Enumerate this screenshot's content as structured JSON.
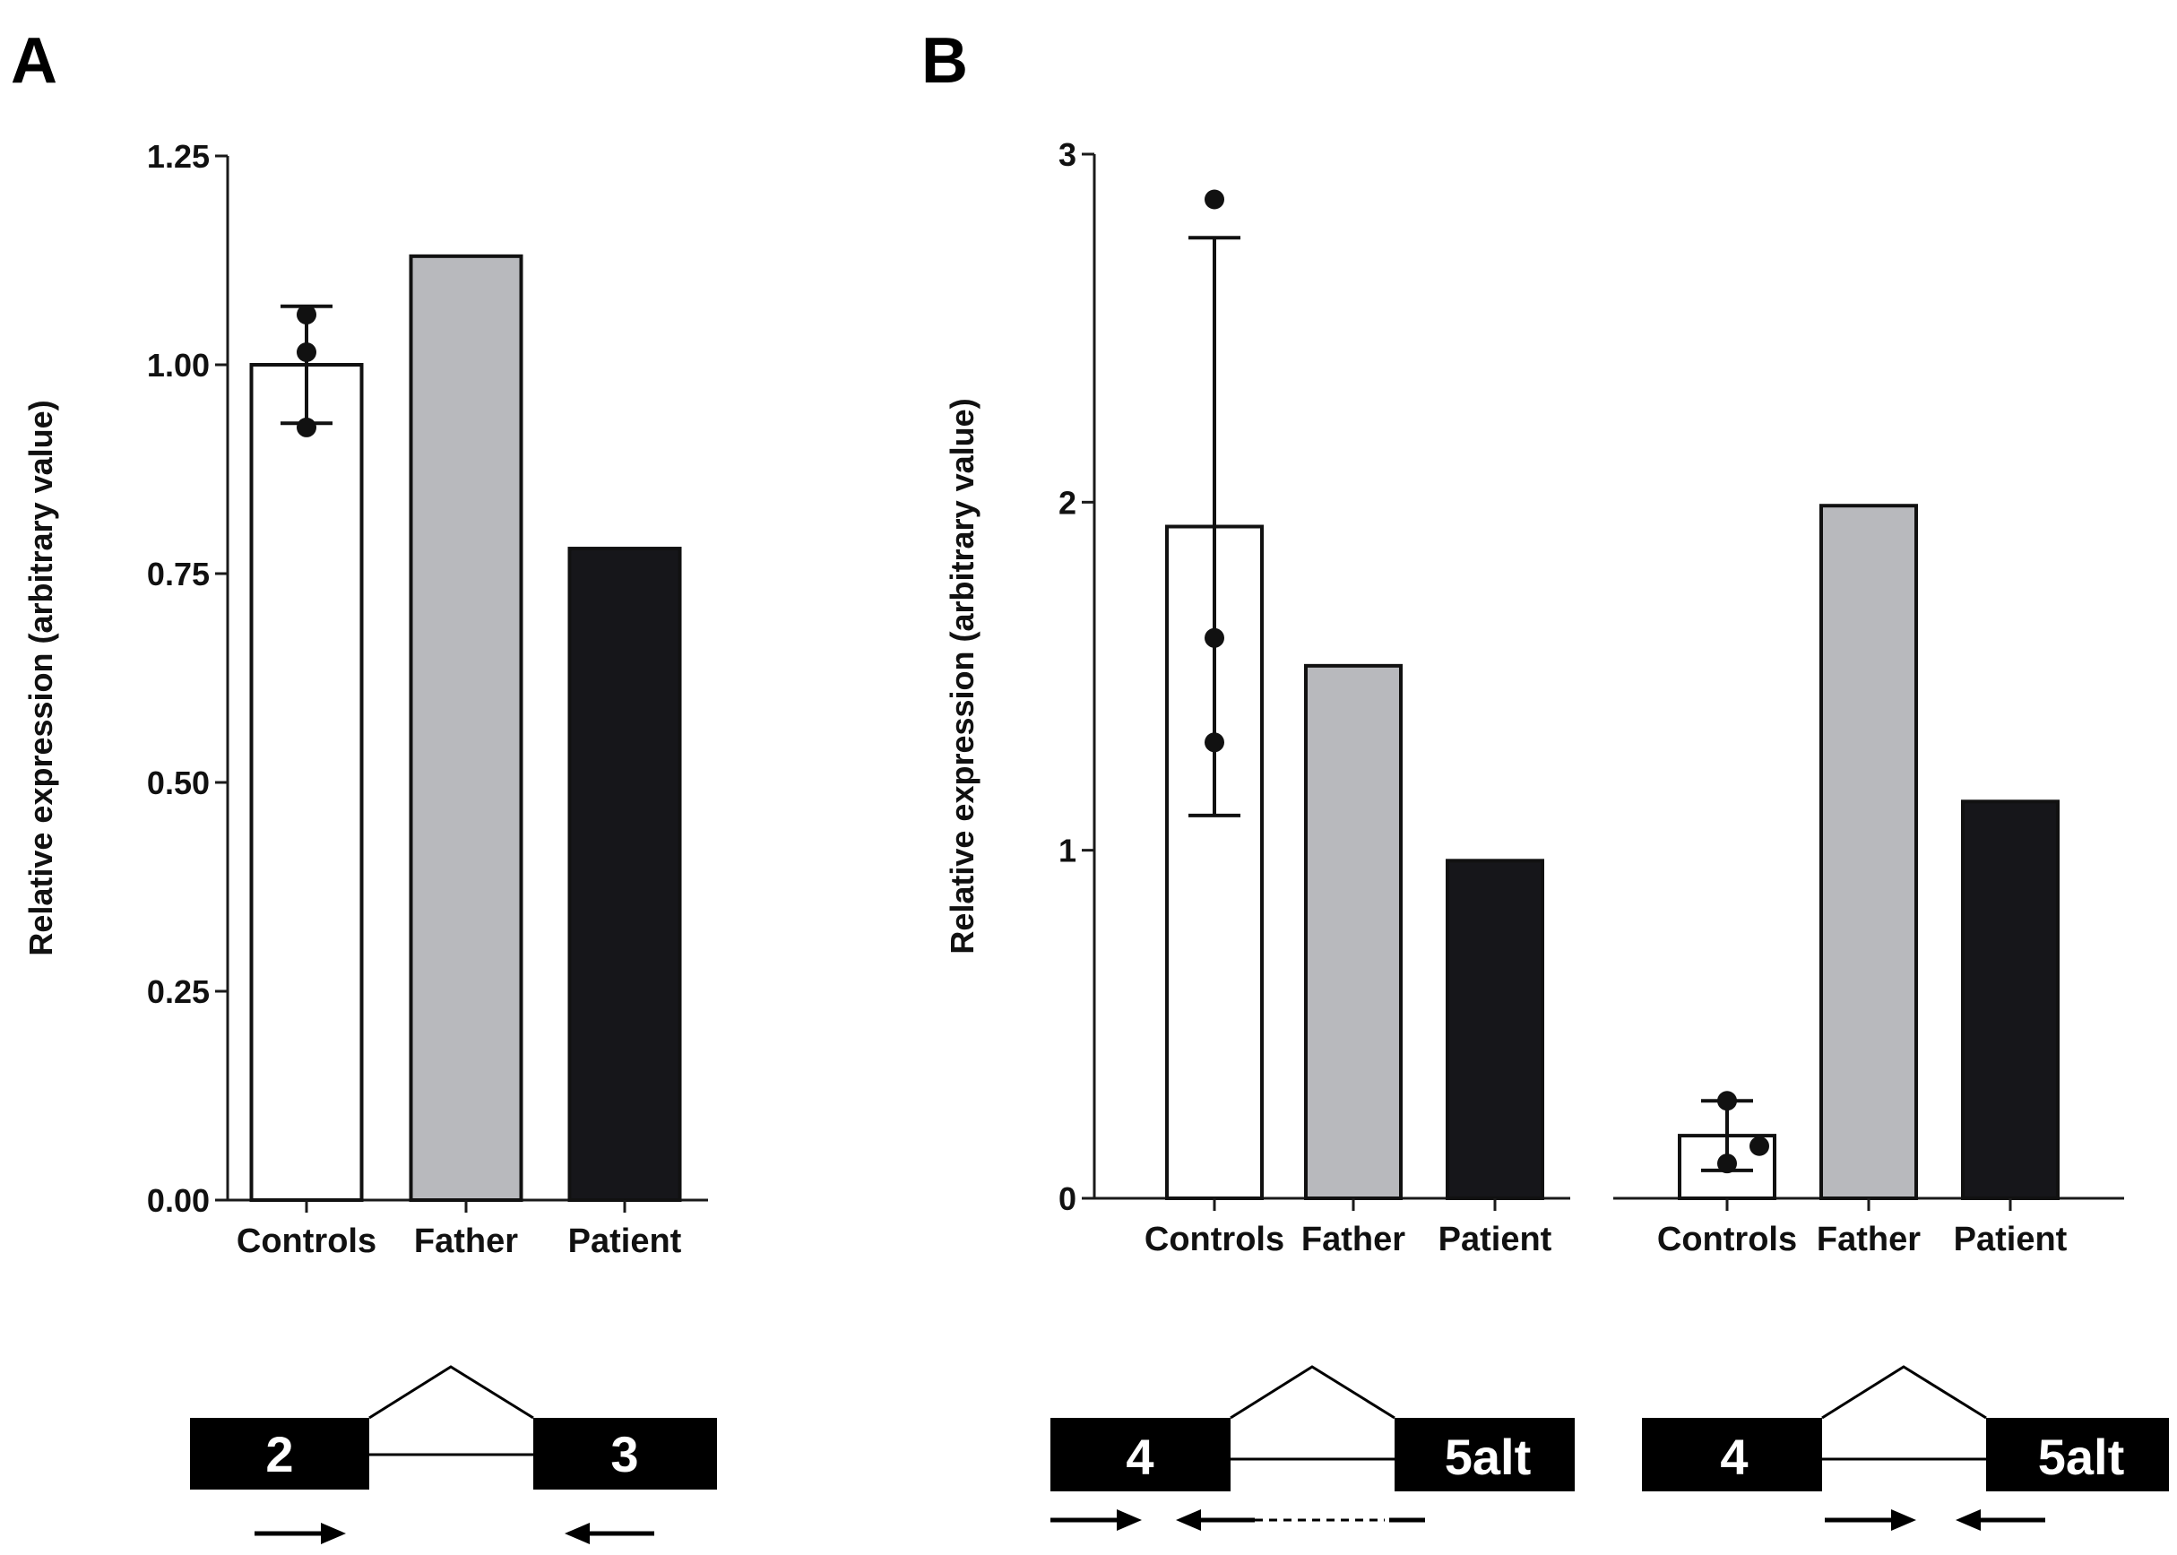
{
  "colors": {
    "axis": "#1a1a1a",
    "controls_fill": "#ffffff",
    "father_fill": "#b8b9bd",
    "patient_fill": "#16161a",
    "exon_fill": "#000000",
    "exon_text": "#ffffff"
  },
  "panels": {
    "a": {
      "letter": "A"
    },
    "b": {
      "letter": "B"
    }
  },
  "chart_data": [
    {
      "id": "A",
      "type": "bar",
      "ylabel": "Relative expression (arbitrary value)",
      "ylim": [
        0,
        1.25
      ],
      "yticks": [
        0,
        0.25,
        0.5,
        0.75,
        1.0,
        1.25
      ],
      "ytick_labels": [
        "0.00",
        "0.25",
        "0.50",
        "0.75",
        "1.00",
        "1.25"
      ],
      "categories": [
        "Controls",
        "Father",
        "Patient"
      ],
      "values": [
        1.0,
        1.13,
        0.78
      ],
      "error_bars": [
        [
          0.93,
          1.07
        ],
        null,
        null
      ],
      "points": [
        [
          0.925,
          1.015,
          1.06
        ],
        [],
        []
      ]
    },
    {
      "id": "B",
      "type": "bar",
      "ylabel": "Relative expression (arbitrary value)",
      "ylim": [
        0,
        3
      ],
      "yticks": [
        0,
        1,
        2,
        3
      ],
      "ytick_labels": [
        "0",
        "1",
        "2",
        "3"
      ],
      "groups": [
        {
          "categories": [
            "Controls",
            "Father",
            "Patient"
          ],
          "values": [
            1.93,
            1.53,
            0.97
          ],
          "error_bars": [
            [
              1.1,
              2.76
            ],
            null,
            null
          ],
          "points": [
            [
              1.31,
              1.61,
              2.87
            ],
            [],
            []
          ]
        },
        {
          "categories": [
            "Controls",
            "Father",
            "Patient"
          ],
          "values": [
            0.18,
            1.99,
            1.14
          ],
          "error_bars": [
            [
              0.08,
              0.28
            ],
            null,
            null
          ],
          "points": [
            [
              0.1,
              0.15,
              0.28
            ],
            [],
            []
          ]
        }
      ]
    }
  ],
  "schematics": {
    "a": {
      "left_exon": "2",
      "right_exon": "3"
    },
    "b1": {
      "left_exon": "4",
      "right_exon": "5alt"
    },
    "b2": {
      "left_exon": "4",
      "right_exon": "5alt"
    }
  }
}
